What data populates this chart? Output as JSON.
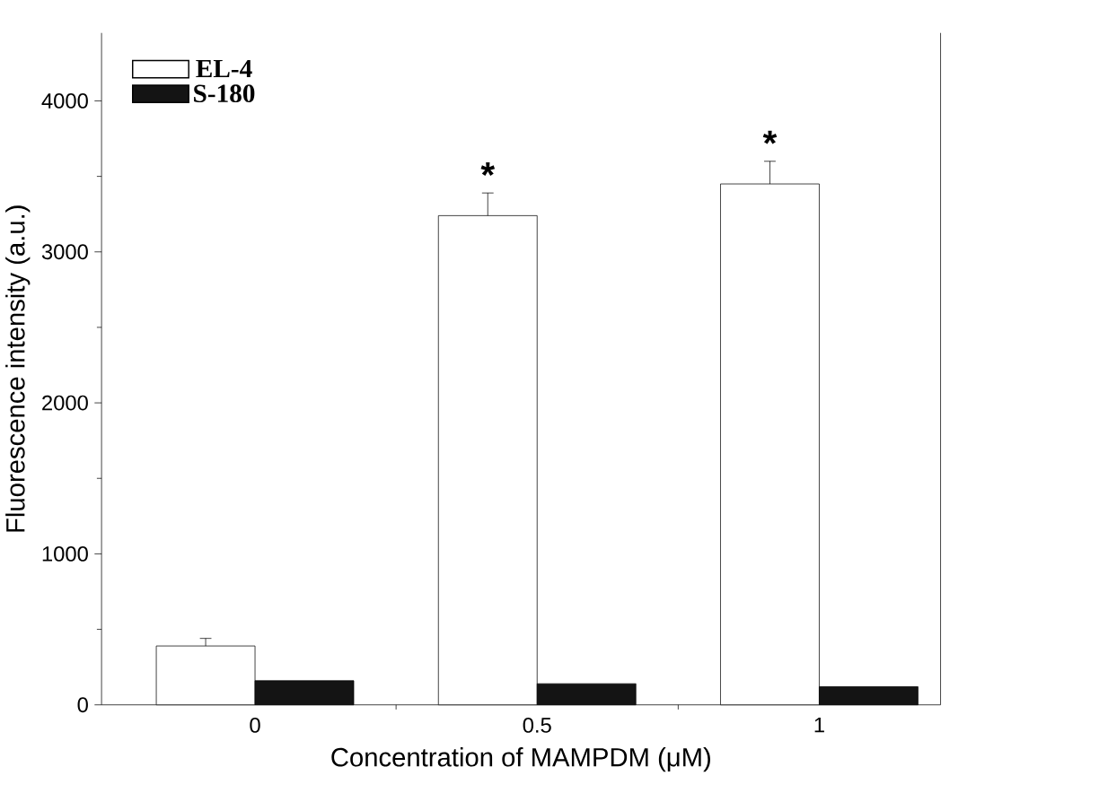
{
  "chart_data": {
    "type": "bar",
    "xlabel": "Concentration of MAMPDM (μM)",
    "ylabel": "Fluorescence intensity (a.u.)",
    "categories": [
      "0",
      "0.5",
      "1"
    ],
    "series": [
      {
        "name": "EL-4",
        "color": "#ffffff",
        "values": [
          390,
          3240,
          3450
        ],
        "errors": [
          50,
          150,
          150
        ]
      },
      {
        "name": "S-180",
        "color": "#141414",
        "values": [
          160,
          140,
          120
        ]
      }
    ],
    "ylim": [
      0,
      4450
    ],
    "yticks": [
      0,
      1000,
      2000,
      3000,
      4000
    ],
    "annotations": [
      "*",
      "*"
    ],
    "legend": "top left",
    "grid": false
  }
}
